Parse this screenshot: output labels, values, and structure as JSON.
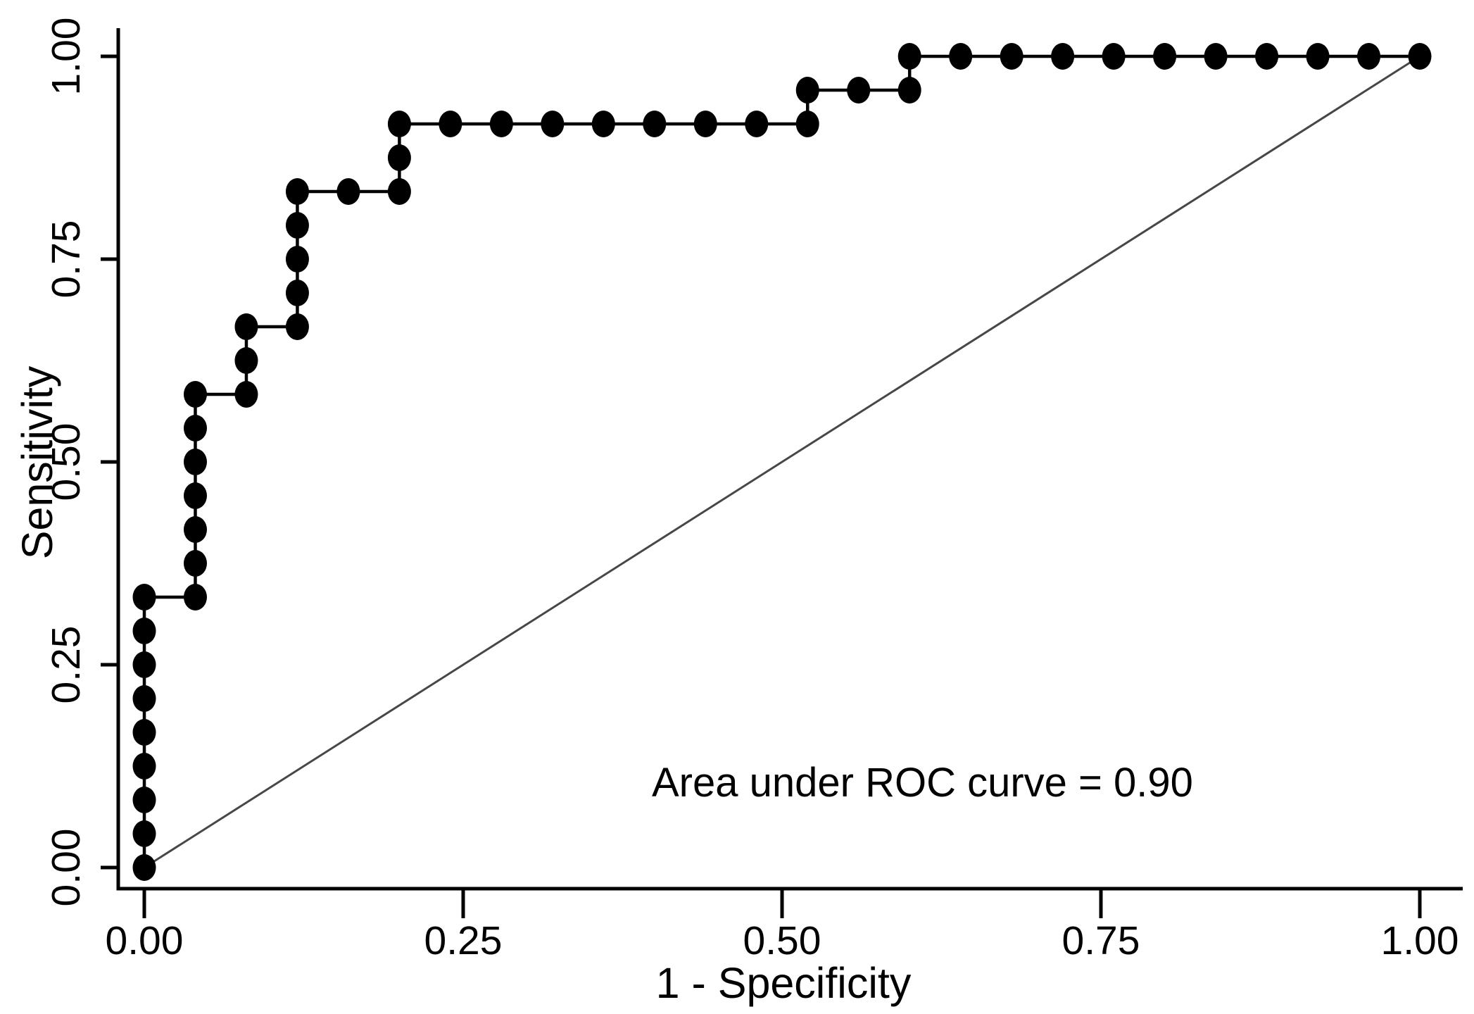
{
  "figure": {
    "background_color": "#ffffff",
    "text_color": "#000000",
    "axis_color": "#000000",
    "reference_line_color": "#474747"
  },
  "chart_data": {
    "type": "line",
    "subtype": "roc_step_curve",
    "title": "",
    "xlabel": "1 - Specificity",
    "ylabel": "Sensitivity",
    "xlim": [
      0,
      1
    ],
    "ylim": [
      0,
      1
    ],
    "grid": false,
    "legend_position": "none",
    "x_tick_labels": [
      "0.00",
      "0.25",
      "0.50",
      "0.75",
      "1.00"
    ],
    "x_tick_values": [
      0,
      0.25,
      0.5,
      0.75,
      1
    ],
    "y_tick_labels": [
      "0.00",
      "0.25",
      "0.50",
      "0.75",
      "1.00"
    ],
    "y_tick_values": [
      0,
      0.25,
      0.5,
      0.75,
      1
    ],
    "annotation": {
      "text": "Area under ROC curve = 0.90",
      "auc_value": "0.90",
      "x": 0.398,
      "y": 0.088
    },
    "series": [
      {
        "name": "ROC curve",
        "style": "step line with filled circle markers",
        "color": "#000000",
        "x_denominator": 25,
        "y_denominator": 24,
        "points_steps": [
          [
            0,
            0
          ],
          [
            0,
            1
          ],
          [
            0,
            2
          ],
          [
            0,
            3
          ],
          [
            0,
            4
          ],
          [
            0,
            5
          ],
          [
            0,
            6
          ],
          [
            0,
            7
          ],
          [
            0,
            8
          ],
          [
            1,
            8
          ],
          [
            1,
            9
          ],
          [
            1,
            10
          ],
          [
            1,
            11
          ],
          [
            1,
            12
          ],
          [
            1,
            13
          ],
          [
            1,
            14
          ],
          [
            2,
            14
          ],
          [
            2,
            15
          ],
          [
            2,
            16
          ],
          [
            3,
            16
          ],
          [
            3,
            17
          ],
          [
            3,
            18
          ],
          [
            3,
            19
          ],
          [
            3,
            20
          ],
          [
            4,
            20
          ],
          [
            5,
            20
          ],
          [
            5,
            21
          ],
          [
            5,
            22
          ],
          [
            6,
            22
          ],
          [
            7,
            22
          ],
          [
            8,
            22
          ],
          [
            9,
            22
          ],
          [
            10,
            22
          ],
          [
            11,
            22
          ],
          [
            12,
            22
          ],
          [
            13,
            22
          ],
          [
            13,
            23
          ],
          [
            14,
            23
          ],
          [
            15,
            23
          ],
          [
            15,
            24
          ],
          [
            16,
            24
          ],
          [
            17,
            24
          ],
          [
            18,
            24
          ],
          [
            19,
            24
          ],
          [
            20,
            24
          ],
          [
            21,
            24
          ],
          [
            22,
            24
          ],
          [
            23,
            24
          ],
          [
            24,
            24
          ],
          [
            25,
            24
          ]
        ]
      },
      {
        "name": "Chance diagonal reference line",
        "style": "thin straight line",
        "color": "#474747",
        "points": [
          [
            0,
            0
          ],
          [
            1,
            1
          ]
        ]
      }
    ]
  }
}
